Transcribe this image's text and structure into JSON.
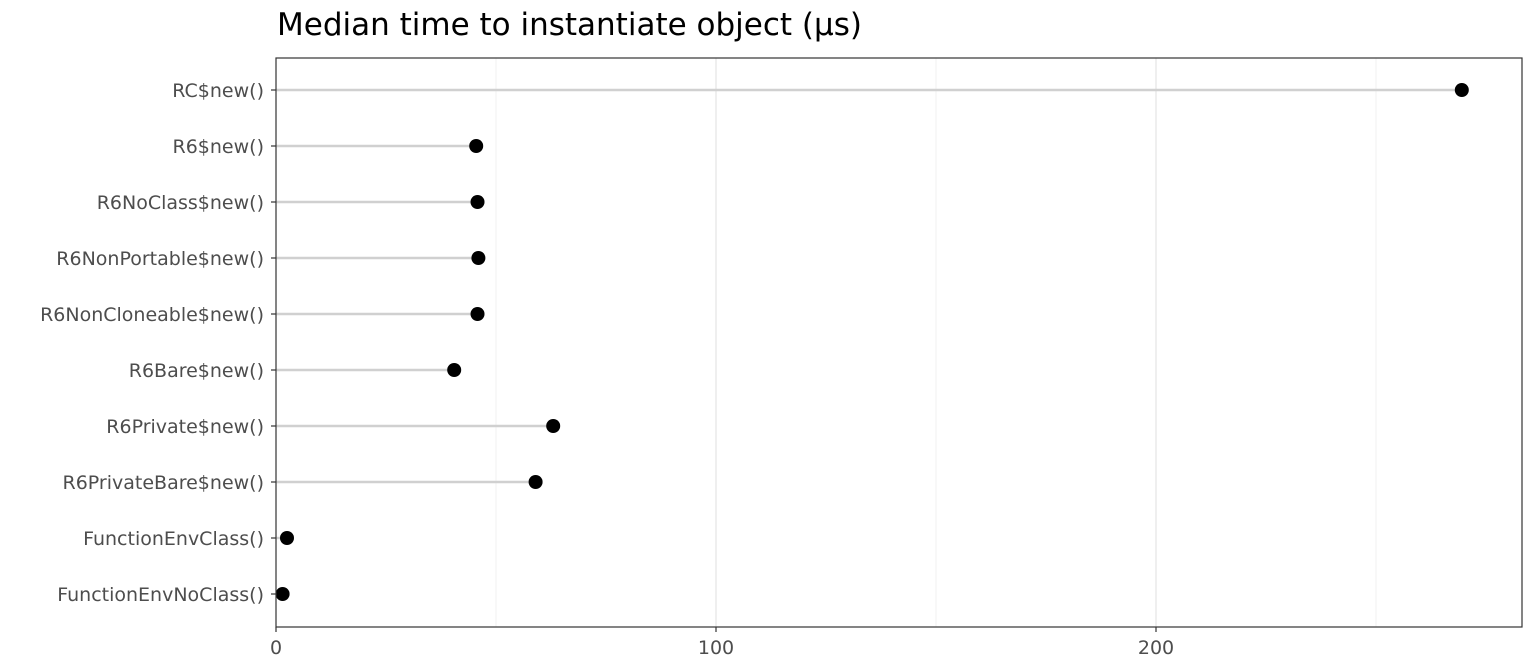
{
  "chart_data": {
    "type": "scatter",
    "style": "lollipop",
    "title": "Median time to instantiate object (µs)",
    "xlabel": "",
    "ylabel": "",
    "xlim": [
      0,
      280
    ],
    "x_ticks": [
      0,
      100,
      200
    ],
    "grid": true,
    "categories": [
      "RC$new()",
      "R6$new()",
      "R6NoClass$new()",
      "R6NonPortable$new()",
      "R6NonCloneable$new()",
      "R6Bare$new()",
      "R6Private$new()",
      "R6PrivateBare$new()",
      "FunctionEnvClass()",
      "FunctionEnvNoClass()"
    ],
    "values": [
      269.5,
      45.5,
      45.8,
      46.0,
      45.8,
      40.5,
      63.0,
      59.0,
      2.5,
      1.5
    ]
  }
}
